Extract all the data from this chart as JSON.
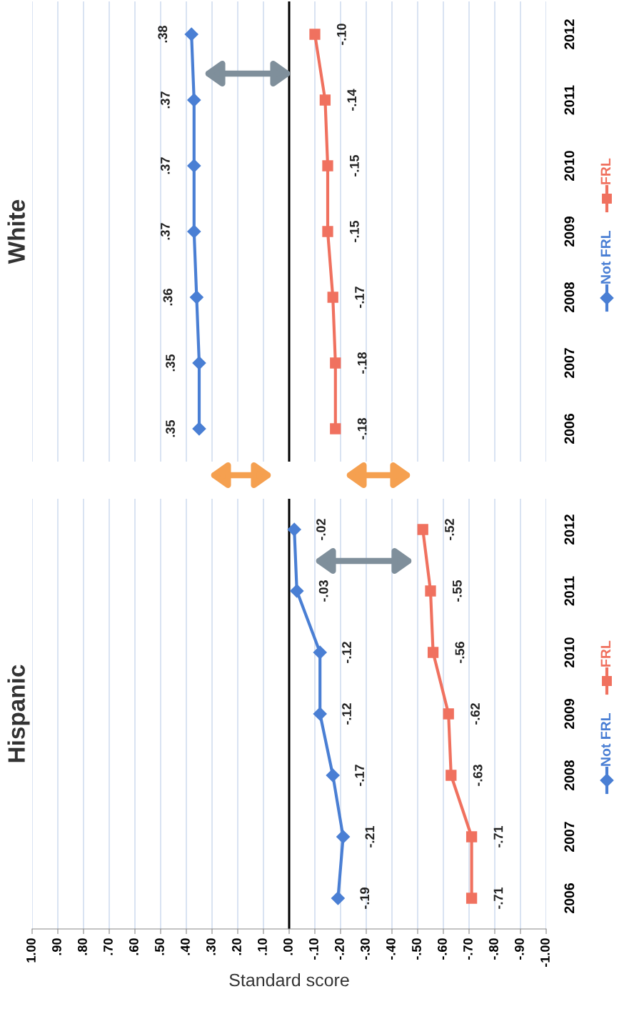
{
  "chart_data": [
    {
      "type": "line",
      "title": "Hispanic",
      "xlabel": "Standard score",
      "orientation": "horizontal",
      "categories": [
        "2012",
        "2011",
        "2010",
        "2009",
        "2008",
        "2007",
        "2006"
      ],
      "series": [
        {
          "name": "Not FRL",
          "color": "#4a7fd4",
          "marker": "diamond",
          "values": [
            -0.02,
            -0.03,
            -0.12,
            -0.12,
            -0.17,
            -0.21,
            -0.19
          ],
          "value_labels": [
            "-.02",
            "-.03",
            "-.12",
            "-.12",
            "-.17",
            "-.21",
            "-.19"
          ]
        },
        {
          "name": "FRL",
          "color": "#f0715f",
          "marker": "square",
          "values": [
            -0.52,
            -0.55,
            -0.56,
            -0.62,
            -0.63,
            -0.71,
            -0.71
          ],
          "value_labels": [
            "-.52",
            "-.55",
            "-.56",
            "-.62",
            "-.63",
            "-.71",
            "-.71"
          ]
        }
      ],
      "xlim": [
        1.0,
        -1.0
      ],
      "xticks": [
        {
          "value": 1.0,
          "label": "1.00"
        },
        {
          "value": 0.9,
          "label": ".90"
        },
        {
          "value": 0.8,
          "label": ".80"
        },
        {
          "value": 0.7,
          "label": ".70"
        },
        {
          "value": 0.6,
          "label": ".60"
        },
        {
          "value": 0.5,
          "label": ".50"
        },
        {
          "value": 0.4,
          "label": ".40"
        },
        {
          "value": 0.3,
          "label": ".30"
        },
        {
          "value": 0.2,
          "label": ".20"
        },
        {
          "value": 0.1,
          "label": ".10"
        },
        {
          "value": 0.0,
          "label": ".00"
        },
        {
          "value": -0.1,
          "label": "-.10"
        },
        {
          "value": -0.2,
          "label": "-.20"
        },
        {
          "value": -0.3,
          "label": "-.30"
        },
        {
          "value": -0.4,
          "label": "-.40"
        },
        {
          "value": -0.5,
          "label": "-.50"
        },
        {
          "value": -0.6,
          "label": "-.60"
        },
        {
          "value": -0.7,
          "label": "-.70"
        },
        {
          "value": -0.8,
          "label": "-.80"
        },
        {
          "value": -0.9,
          "label": "-.90"
        },
        {
          "value": -1.0,
          "label": "-1.00"
        }
      ],
      "ref_lines": [
        {
          "axis": "x",
          "value": 0,
          "color": "#000000"
        }
      ],
      "grid": "x",
      "legend": "right"
    },
    {
      "type": "line",
      "title": "White",
      "orientation": "horizontal",
      "categories": [
        "2012",
        "2011",
        "2010",
        "2009",
        "2008",
        "2007",
        "2006"
      ],
      "series": [
        {
          "name": "Not FRL",
          "color": "#4a7fd4",
          "marker": "diamond",
          "values": [
            0.38,
            0.37,
            0.37,
            0.37,
            0.36,
            0.35,
            0.35
          ],
          "value_labels": [
            ".38",
            ".37",
            ".37",
            ".37",
            ".36",
            ".35",
            ".35"
          ]
        },
        {
          "name": "FRL",
          "color": "#f0715f",
          "marker": "square",
          "values": [
            -0.1,
            -0.14,
            -0.15,
            -0.15,
            -0.17,
            -0.18,
            -0.18
          ],
          "value_labels": [
            "-.10",
            "-.14",
            "-.15",
            "-.15",
            "-.17",
            "-.18",
            "-.18"
          ]
        }
      ],
      "xlim": [
        1.0,
        -1.0
      ],
      "xticks": [
        {
          "value": 1.0,
          "label": null
        },
        {
          "value": 0.9,
          "label": null
        },
        {
          "value": 0.8,
          "label": null
        },
        {
          "value": 0.7,
          "label": null
        },
        {
          "value": 0.6,
          "label": null
        },
        {
          "value": 0.5,
          "label": null
        },
        {
          "value": 0.4,
          "label": null
        },
        {
          "value": 0.3,
          "label": null
        },
        {
          "value": 0.2,
          "label": null
        },
        {
          "value": 0.1,
          "label": null
        },
        {
          "value": 0.0,
          "label": null
        },
        {
          "value": -0.1,
          "label": null
        },
        {
          "value": -0.2,
          "label": null
        },
        {
          "value": -0.3,
          "label": null
        },
        {
          "value": -0.4,
          "label": null
        },
        {
          "value": -0.5,
          "label": null
        },
        {
          "value": -0.6,
          "label": null
        },
        {
          "value": -0.7,
          "label": null
        },
        {
          "value": -0.8,
          "label": null
        },
        {
          "value": -0.9,
          "label": null
        },
        {
          "value": -1.0,
          "label": null
        }
      ],
      "ref_lines": [
        {
          "axis": "x",
          "value": 0,
          "color": "#000000"
        }
      ],
      "tick_labels": "y",
      "grid": "x",
      "legend": "right"
    }
  ]
}
